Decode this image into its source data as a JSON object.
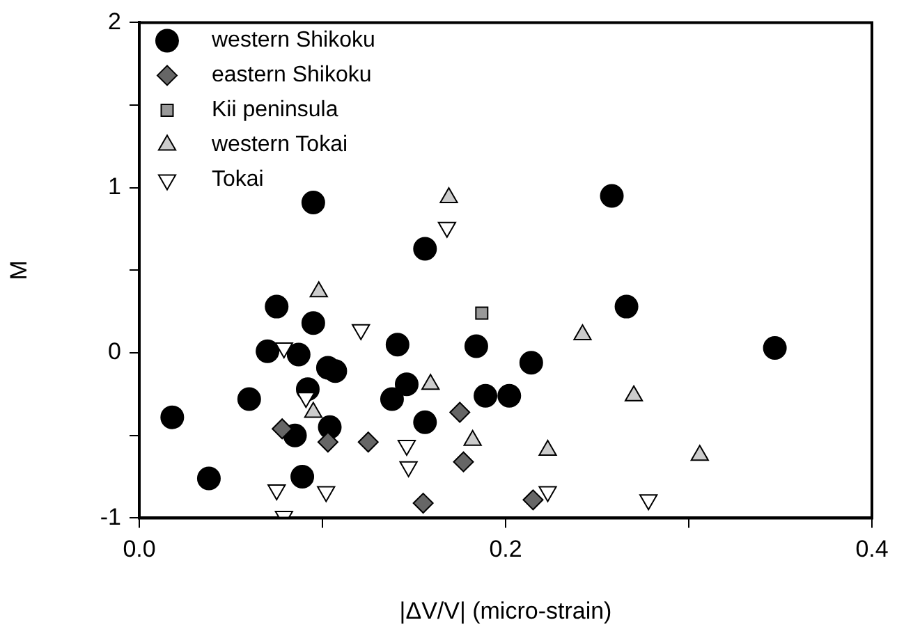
{
  "chart_data": {
    "type": "scatter",
    "xlabel": "|ΔV/V| (micro-strain)",
    "ylabel": "M",
    "xlim": [
      0,
      0.4
    ],
    "ylim": [
      -1,
      2
    ],
    "xticks": [
      {
        "value": 0,
        "label": "0.0"
      },
      {
        "value": 0.1,
        "label": null
      },
      {
        "value": 0.2,
        "label": "0.2"
      },
      {
        "value": 0.3,
        "label": null
      },
      {
        "value": 0.4,
        "label": "0.4"
      }
    ],
    "yticks": [
      -1,
      {
        "value": -0.5,
        "label": null
      },
      0,
      {
        "value": 0.5,
        "label": null
      },
      1,
      {
        "value": 1.5,
        "label": null
      },
      2
    ],
    "grid": false,
    "legend": "top left",
    "series": [
      {
        "name": "western Shikoku",
        "color": "#000000",
        "marker": "circle",
        "x": [
          0.095,
          0.075,
          0.095,
          0.07,
          0.087,
          0.103,
          0.107,
          0.092,
          0.06,
          0.018,
          0.104,
          0.085,
          0.038,
          0.089,
          0.156,
          0.258,
          0.141,
          0.184,
          0.214,
          0.138,
          0.146,
          0.189,
          0.202,
          0.156,
          0.266,
          0.347
        ],
        "values": [
          0.91,
          0.28,
          0.18,
          0.01,
          -0.01,
          -0.09,
          -0.11,
          -0.22,
          -0.28,
          -0.39,
          -0.45,
          -0.5,
          -0.76,
          -0.75,
          0.63,
          0.95,
          0.05,
          0.04,
          -0.06,
          -0.28,
          -0.19,
          -0.26,
          -0.26,
          -0.42,
          0.28,
          0.03
        ]
      },
      {
        "name": "eastern Shikoku",
        "color": "#666666",
        "marker": "diamond",
        "x": [
          0.078,
          0.103,
          0.125,
          0.175,
          0.177,
          0.155,
          0.215
        ],
        "values": [
          -0.46,
          -0.54,
          -0.54,
          -0.36,
          -0.66,
          -0.91,
          -0.89
        ]
      },
      {
        "name": "Kii peninsula",
        "color": "#999999",
        "marker": "square",
        "x": [
          0.187
        ],
        "values": [
          0.24
        ]
      },
      {
        "name": "western Tokai",
        "color": "#cccccc",
        "marker": "triangle",
        "x": [
          0.098,
          0.095,
          0.169,
          0.159,
          0.182,
          0.223,
          0.242,
          0.27,
          0.306
        ],
        "values": [
          0.37,
          -0.36,
          0.94,
          -0.19,
          -0.53,
          -0.59,
          0.11,
          -0.26,
          -0.62
        ]
      },
      {
        "name": "Tokai",
        "color": "#ffffff",
        "marker": "triangle_down",
        "x": [
          0.079,
          0.091,
          0.121,
          0.075,
          0.102,
          0.079,
          0.168,
          0.146,
          0.147,
          0.223,
          0.278
        ],
        "values": [
          0.03,
          -0.27,
          0.14,
          -0.83,
          -0.84,
          -0.99,
          0.76,
          -0.56,
          -0.69,
          -0.84,
          -0.89
        ]
      }
    ]
  }
}
